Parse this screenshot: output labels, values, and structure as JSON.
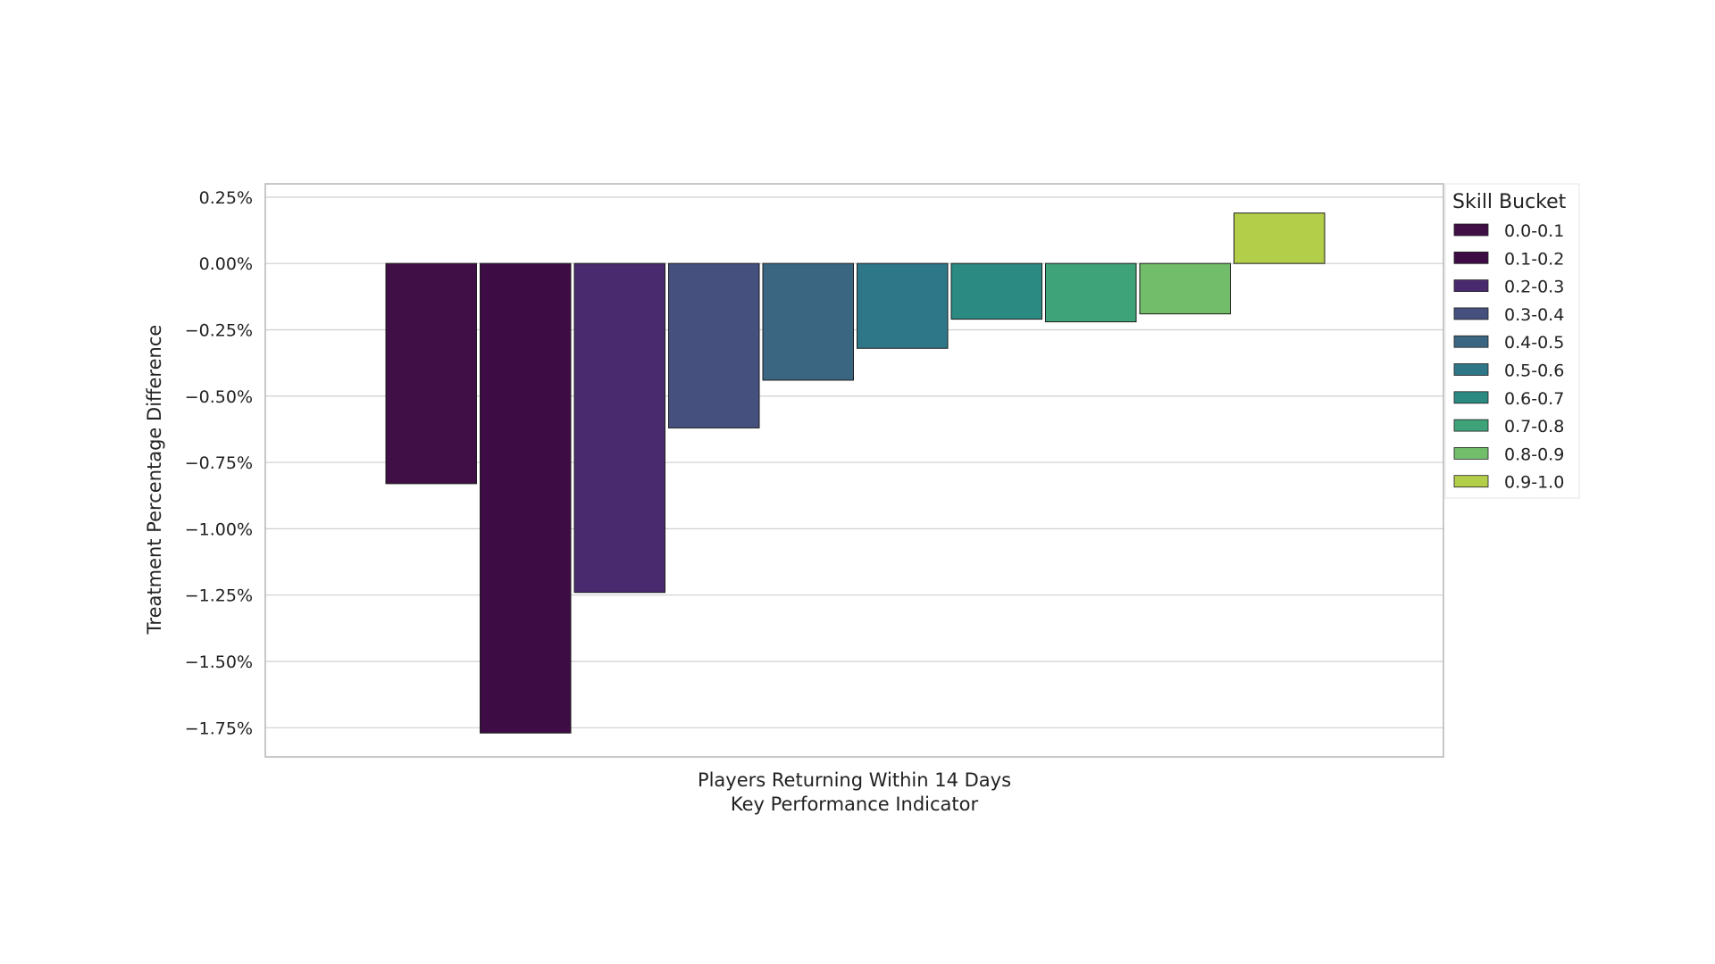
{
  "chart_data": {
    "type": "bar",
    "categories": [
      "Players Returning Within 14 Days"
    ],
    "xlabel": "Key Performance Indicator",
    "ylabel": "Treatment Percentage Difference",
    "ylim": [
      -1.86,
      0.3
    ],
    "yticks": [
      0.25,
      0.0,
      -0.25,
      -0.5,
      -0.75,
      -1.0,
      -1.25,
      -1.5,
      -1.75
    ],
    "ytick_labels": [
      "0.25%",
      "0.00%",
      "−0.25%",
      "−0.50%",
      "−0.75%",
      "−1.00%",
      "−1.25%",
      "−1.50%",
      "−1.75%"
    ],
    "grid": "horizontal",
    "legend": {
      "title": "Skill Bucket",
      "placement": "upper-right outside"
    },
    "series": [
      {
        "name": "0.0-0.1",
        "color": "#3f0f46",
        "values": [
          -0.83
        ]
      },
      {
        "name": "0.1-0.2",
        "color": "#3e0c45",
        "values": [
          -1.77
        ]
      },
      {
        "name": "0.2-0.3",
        "color": "#4a2a6e",
        "values": [
          -1.24
        ]
      },
      {
        "name": "0.3-0.4",
        "color": "#45507f",
        "values": [
          -0.62
        ]
      },
      {
        "name": "0.4-0.5",
        "color": "#3b6681",
        "values": [
          -0.44
        ]
      },
      {
        "name": "0.5-0.6",
        "color": "#2e7788",
        "values": [
          -0.32
        ]
      },
      {
        "name": "0.6-0.7",
        "color": "#2b8b82",
        "values": [
          -0.21
        ]
      },
      {
        "name": "0.7-0.8",
        "color": "#3fa37a",
        "values": [
          -0.22
        ]
      },
      {
        "name": "0.8-0.9",
        "color": "#72bd6a",
        "values": [
          -0.19
        ]
      },
      {
        "name": "0.9-1.0",
        "color": "#b3ce49",
        "values": [
          0.19
        ]
      }
    ]
  }
}
